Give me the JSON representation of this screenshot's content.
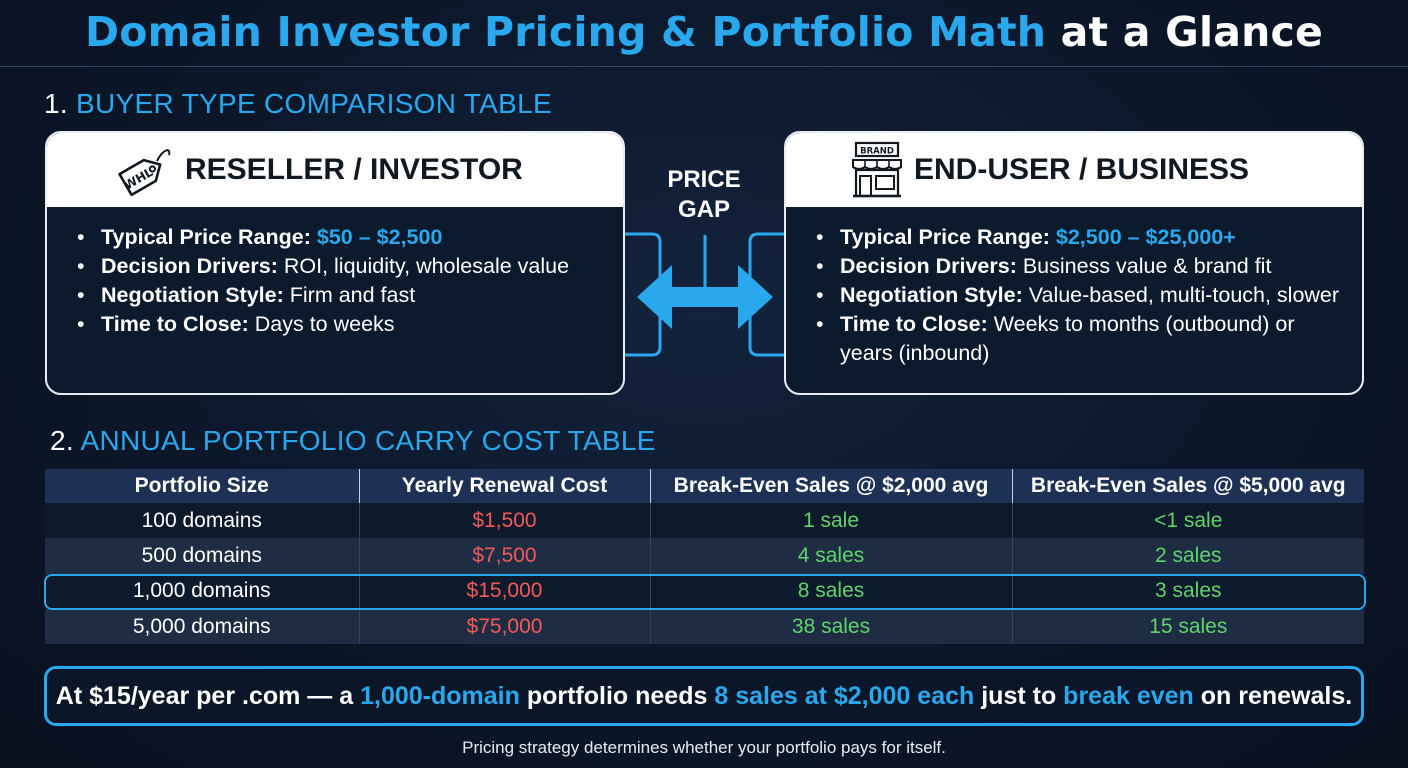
{
  "title": {
    "highlight": "Domain Investor Pricing & Portfolio Math",
    "rest": "at a Glance"
  },
  "section1": {
    "number": "1.",
    "label": "BUYER TYPE COMPARISON TABLE"
  },
  "reseller": {
    "title": "RESELLER / INVESTOR",
    "icon": "price-tag-icon",
    "icon_text": "WHL",
    "items": [
      {
        "key": "Typical Price Range:",
        "value": "$50 – $2,500"
      },
      {
        "key": "Decision Drivers:",
        "value": "ROI, liquidity, wholesale value"
      },
      {
        "key": "Negotiation Style:",
        "value": "Firm and fast"
      },
      {
        "key": "Time to Close:",
        "value": "Days to weeks"
      }
    ]
  },
  "enduser": {
    "title": "END-USER / BUSINESS",
    "icon": "storefront-icon",
    "icon_text": "BRAND",
    "items": [
      {
        "key": "Typical Price Range:",
        "value": "$2,500 – $25,000+"
      },
      {
        "key": "Decision Drivers:",
        "value": "Business value & brand fit"
      },
      {
        "key": "Negotiation Style:",
        "value": "Value-based, multi-touch, slower"
      },
      {
        "key": "Time to Close:",
        "value": "Weeks to months (outbound) or years (inbound)"
      }
    ]
  },
  "gap": {
    "line1": "PRICE",
    "line2": "GAP",
    "icon": "double-arrow-icon"
  },
  "section2": {
    "number": "2.",
    "label": "ANNUAL PORTFOLIO CARRY COST TABLE"
  },
  "table": {
    "headers": [
      "Portfolio Size",
      "Yearly Renewal Cost",
      "Break-Even Sales @ $2,000 avg",
      "Break-Even Sales @ $5,000 avg"
    ],
    "rows": [
      [
        "100 domains",
        "$1,500",
        "1 sale",
        "<1 sale"
      ],
      [
        "500 domains",
        "$7,500",
        "4 sales",
        "2 sales"
      ],
      [
        "1,000 domains",
        "$15,000",
        "8 sales",
        "3 sales"
      ],
      [
        "5,000 domains",
        "$75,000",
        "38 sales",
        "15 sales"
      ]
    ],
    "highlighted_row": 2
  },
  "callout": {
    "p1": "At $15/year per .com — a ",
    "b1": "1,000-domain",
    "p2": " portfolio needs ",
    "b2": "8 sales at $2,000 each",
    "p3": " just to ",
    "b3": "break even",
    "p4": " on renewals."
  },
  "footer": "Pricing strategy determines whether your portfolio pays for itself.",
  "colors": {
    "background": "#0b1628",
    "accent_blue": "#2aa8ee",
    "cost_red": "#f25a5a",
    "sales_green": "#5ed46a",
    "header_navy": "#1d3155"
  }
}
